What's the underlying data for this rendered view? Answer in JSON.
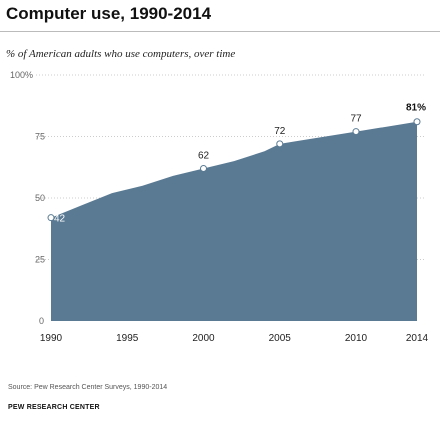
{
  "title": "Computer use, 1990-2014",
  "subtitle": "% of American adults who use computers, over time",
  "source": "Source: Pew Research Center Surveys, 1990-2014",
  "organization": "PEW RESEARCH CENTER",
  "colors": {
    "area": "#5a7a93",
    "marker_fill": "#ffffff",
    "marker_stroke": "#5a7a93",
    "text": "#333333",
    "gridline": "#cccccc"
  },
  "chart_data": {
    "type": "area",
    "x": [
      1990,
      1992,
      1994,
      1996,
      1998,
      2000,
      2002,
      2004,
      2005,
      2006,
      2008,
      2010,
      2012,
      2014
    ],
    "y": [
      42,
      47,
      52,
      55,
      59,
      62,
      65,
      69,
      72,
      73,
      75,
      77,
      79,
      81
    ],
    "labeled_points": [
      {
        "x": 1990,
        "y": 42,
        "label": "42"
      },
      {
        "x": 2000,
        "y": 62,
        "label": "62"
      },
      {
        "x": 2005,
        "y": 72,
        "label": "72"
      },
      {
        "x": 2010,
        "y": 77,
        "label": "77"
      },
      {
        "x": 2014,
        "y": 81,
        "label": "81%"
      }
    ],
    "xticks": [
      {
        "value": 1990,
        "label": "1990"
      },
      {
        "value": 1995,
        "label": "1995"
      },
      {
        "value": 2000,
        "label": "2000"
      },
      {
        "value": 2005,
        "label": "2005"
      },
      {
        "value": 2010,
        "label": "2010"
      },
      {
        "value": 2014,
        "label": "2014"
      }
    ],
    "yticks": [
      {
        "value": 0,
        "label": "0"
      },
      {
        "value": 25,
        "label": "25"
      },
      {
        "value": 50,
        "label": "50"
      },
      {
        "value": 75,
        "label": "75"
      },
      {
        "value": 100,
        "label": "100%"
      }
    ],
    "xlim": [
      1990,
      2014
    ],
    "ylim": [
      0,
      100
    ],
    "grid": "dotted horizontal",
    "xlabel": "",
    "ylabel": ""
  }
}
